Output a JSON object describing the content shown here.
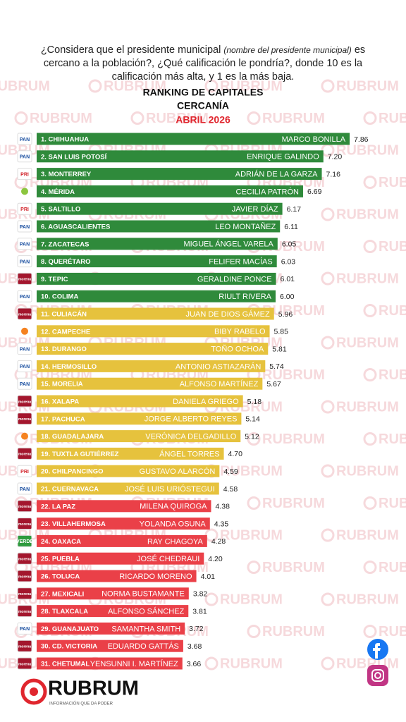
{
  "chart_data": {
    "type": "bar",
    "question_before": "¿Considera que el presidente municipal",
    "question_italic": "(nombre del presidente municipal)",
    "question_after": "es cercano a la población?, ¿Qué calificación le pondría?, donde 10 es la calificación más alta, y 1 es la más baja.",
    "title": "RANKING DE CAPITALES",
    "title_line2": "CERCANÍA",
    "subtitle": "ABRIL 2026",
    "categories": [
      "1. CHIHUAHUA",
      "2. SAN LUIS POTOSÍ",
      "3. MONTERREY",
      "4. MÉRIDA",
      "5. SALTILLO",
      "6. AGUASCALIENTES",
      "7. ZACATECAS",
      "8. QUERÉTARO",
      "9. TEPIC",
      "10. COLIMA",
      "11. CULIACÁN",
      "12. CAMPECHE",
      "13. DURANGO",
      "14. HERMOSILLO",
      "15. MORELIA",
      "16. XALAPA",
      "17. PACHUCA",
      "18. GUADALAJARA",
      "19. TUXTLA GUTIÉRREZ",
      "20. CHILPANCINGO",
      "21. CUERNAVACA",
      "22. LA PAZ",
      "23. VILLAHERMOSA",
      "24. OAXACA",
      "25. PUEBLA",
      "26. TOLUCA",
      "27. MEXICALI",
      "28. TLAXCALA",
      "29. GUANAJUATO",
      "30. CD. VICTORIA",
      "31. CHETUMAL"
    ],
    "names": [
      "MARCO BONILLA",
      "ENRIQUE GALINDO",
      "ADRIÁN DE LA GARZA",
      "CECILIA PATRÓN",
      "JAVIER DÍAZ",
      "LEO MONTAÑEZ",
      "MIGUEL ÁNGEL VARELA",
      "FELIFER MACÍAS",
      "GERALDINE PONCE",
      "RIULT RIVERA",
      "JUAN DE DIOS GÁMEZ",
      "BIBY RABELO",
      "TOÑO OCHOA",
      "ANTONIO ASTIAZARÁN",
      "ALFONSO MARTÍNEZ",
      "DANIELA GRIEGO",
      "JORGE ALBERTO REYES",
      "VERÓNICA DELGADILLO",
      "ÁNGEL TORRES",
      "GUSTAVO ALARCÓN",
      "JOSÉ LUIS URIÓSTEGUI",
      "MILENA QUIROGA",
      "YOLANDA OSUNA",
      "RAY CHAGOYA",
      "JOSÉ CHEDRAUI",
      "RICARDO MORENO",
      "NORMA BUSTAMANTE",
      "ALFONSO SÁNCHEZ",
      "SAMANTHA SMITH",
      "EDUARDO GATTÁS",
      "YENSUNNI I. MARTÍNEZ"
    ],
    "parties": [
      "PAN",
      "PAN",
      "PRI",
      null,
      "PRI",
      "PAN",
      "PAN",
      "PAN",
      "morena",
      "PAN",
      "morena",
      null,
      "PAN",
      "PAN",
      "PAN",
      "morena",
      "morena",
      null,
      "morena",
      "PRI",
      "PAN",
      "morena",
      "morena",
      "VERDE",
      "morena",
      "morena",
      "morena",
      "morena",
      "PAN",
      "morena",
      "morena"
    ],
    "values": [
      7.86,
      7.2,
      7.16,
      6.69,
      6.17,
      6.11,
      6.05,
      6.03,
      6.01,
      6.0,
      5.96,
      5.85,
      5.81,
      5.74,
      5.67,
      5.18,
      5.14,
      5.12,
      4.7,
      4.59,
      4.58,
      4.38,
      4.35,
      4.28,
      4.2,
      4.01,
      3.82,
      3.81,
      3.72,
      3.68,
      3.66
    ],
    "value_labels": [
      "7.86",
      "7.20",
      "7.16",
      "6.69",
      "6.17",
      "6.11",
      "6.05",
      "6.03",
      "6.01",
      "6.00",
      "5.96",
      "5.85",
      "5.81",
      "5.74",
      "5.67",
      "5.18",
      "5.14",
      "5.12",
      "4.70",
      "4.59",
      "4.58",
      "4.38",
      "4.35",
      "4.28",
      "4.20",
      "4.01",
      "3.82",
      "3.81",
      "3.72",
      "3.68",
      "3.66"
    ],
    "colors": [
      "#2f8a3b",
      "#2f8a3b",
      "#2f8a3b",
      "#2f8a3b",
      "#2f8a3b",
      "#2f8a3b",
      "#2f8a3b",
      "#2f8a3b",
      "#2f8a3b",
      "#2f8a3b",
      "#e6c23d",
      "#e6c23d",
      "#e6c23d",
      "#e6c23d",
      "#e6c23d",
      "#e6c23d",
      "#e6c23d",
      "#e6c23d",
      "#e6c23d",
      "#e6c23d",
      "#e6c23d",
      "#ea4048",
      "#ea4048",
      "#ea4048",
      "#ea4048",
      "#ea4048",
      "#ea4048",
      "#ea4048",
      "#ea4048",
      "#ea4048",
      "#ea4048"
    ],
    "xlim": [
      0,
      8
    ]
  },
  "watermark": "RUBRUM",
  "footer": {
    "brand": "RUBRUM",
    "tagline": "INFORMACIÓN QUE DA PODER"
  }
}
